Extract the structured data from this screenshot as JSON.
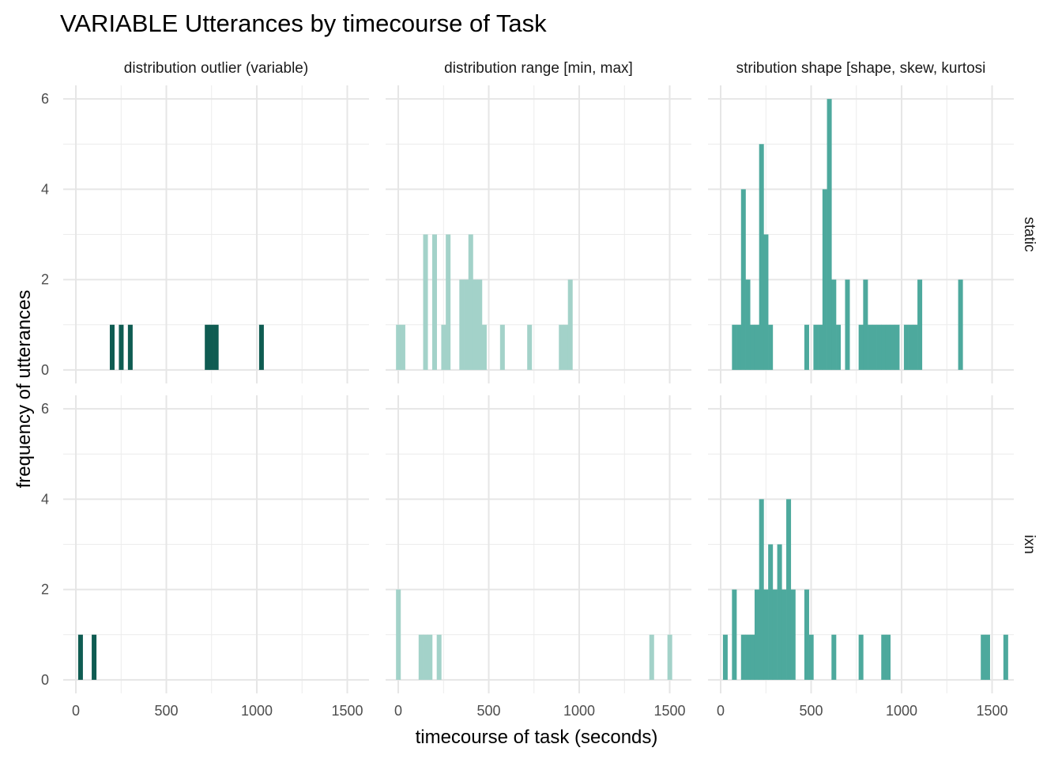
{
  "chart_data": {
    "type": "bar",
    "title": "VARIABLE Utterances by timecourse of Task",
    "xlabel": "timecourse of task (seconds)",
    "ylabel": "frequency of utterances",
    "xlim": [
      -70,
      1620
    ],
    "ylim": [
      -0.3,
      6.3
    ],
    "x_ticks": [
      0,
      500,
      1000,
      1500
    ],
    "y_ticks": [
      0,
      2,
      4,
      6
    ],
    "bin_width": 25,
    "grid": true,
    "columns": [
      "distribution outlier (variable)",
      "distribution range [min, max]",
      "stribution shape [shape, skew, kurtosi"
    ],
    "rows": [
      "static",
      "ixn"
    ],
    "colors": [
      "#0f5c52",
      "#a3d2c9",
      "#4da99d"
    ],
    "panels": [
      {
        "column": "distribution outlier (variable)",
        "row": "static",
        "bins": [
          [
            200,
            1
          ],
          [
            250,
            1
          ],
          [
            300,
            1
          ],
          [
            725,
            1
          ],
          [
            750,
            1
          ],
          [
            775,
            1
          ],
          [
            1025,
            1
          ]
        ]
      },
      {
        "column": "distribution range [min, max]",
        "row": "static",
        "bins": [
          [
            0,
            1
          ],
          [
            25,
            1
          ],
          [
            150,
            3
          ],
          [
            200,
            3
          ],
          [
            250,
            1
          ],
          [
            275,
            3
          ],
          [
            350,
            2
          ],
          [
            375,
            2
          ],
          [
            400,
            3
          ],
          [
            425,
            2
          ],
          [
            450,
            2
          ],
          [
            475,
            1
          ],
          [
            575,
            1
          ],
          [
            725,
            1
          ],
          [
            900,
            1
          ],
          [
            925,
            1
          ],
          [
            950,
            2
          ]
        ]
      },
      {
        "column": "stribution shape [shape, skew, kurtosi",
        "row": "static",
        "bins": [
          [
            75,
            1
          ],
          [
            100,
            1
          ],
          [
            125,
            4
          ],
          [
            150,
            2
          ],
          [
            175,
            1
          ],
          [
            200,
            1
          ],
          [
            225,
            5
          ],
          [
            250,
            3
          ],
          [
            275,
            1
          ],
          [
            475,
            1
          ],
          [
            525,
            1
          ],
          [
            550,
            1
          ],
          [
            575,
            4
          ],
          [
            600,
            6
          ],
          [
            625,
            2
          ],
          [
            650,
            1
          ],
          [
            700,
            2
          ],
          [
            775,
            1
          ],
          [
            800,
            2
          ],
          [
            825,
            1
          ],
          [
            850,
            1
          ],
          [
            875,
            1
          ],
          [
            900,
            1
          ],
          [
            925,
            1
          ],
          [
            950,
            1
          ],
          [
            975,
            1
          ],
          [
            1025,
            1
          ],
          [
            1050,
            1
          ],
          [
            1075,
            1
          ],
          [
            1100,
            2
          ],
          [
            1325,
            2
          ]
        ]
      },
      {
        "column": "distribution outlier (variable)",
        "row": "ixn",
        "bins": [
          [
            25,
            1
          ],
          [
            100,
            1
          ]
        ]
      },
      {
        "column": "distribution range [min, max]",
        "row": "ixn",
        "bins": [
          [
            0,
            2
          ],
          [
            125,
            1
          ],
          [
            150,
            1
          ],
          [
            175,
            1
          ],
          [
            225,
            1
          ],
          [
            1400,
            1
          ],
          [
            1500,
            1
          ]
        ]
      },
      {
        "column": "stribution shape [shape, skew, kurtosi",
        "row": "ixn",
        "bins": [
          [
            25,
            1
          ],
          [
            75,
            2
          ],
          [
            125,
            1
          ],
          [
            150,
            1
          ],
          [
            175,
            1
          ],
          [
            200,
            2
          ],
          [
            225,
            4
          ],
          [
            250,
            2
          ],
          [
            275,
            3
          ],
          [
            300,
            2
          ],
          [
            325,
            3
          ],
          [
            350,
            2
          ],
          [
            375,
            4
          ],
          [
            400,
            2
          ],
          [
            475,
            2
          ],
          [
            500,
            1
          ],
          [
            625,
            1
          ],
          [
            775,
            1
          ],
          [
            900,
            1
          ],
          [
            925,
            1
          ],
          [
            1450,
            1
          ],
          [
            1475,
            1
          ],
          [
            1575,
            1
          ]
        ]
      }
    ]
  }
}
